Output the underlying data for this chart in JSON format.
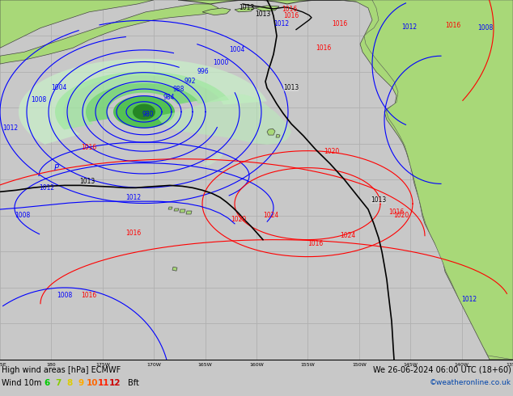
{
  "title_left": "High wind areas [hPa] ECMWF",
  "title_right": "We 26-06-2024 06:00 UTC (18+60)",
  "legend_label": "Wind 10m",
  "bf_labels": [
    "6",
    "7",
    "8",
    "9",
    "10",
    "11",
    "12",
    "Bft"
  ],
  "bf_colors": [
    "#00cc00",
    "#88cc00",
    "#ddcc00",
    "#ffaa00",
    "#ff6600",
    "#ff2200",
    "#cc0000",
    "#000000"
  ],
  "credit": "©weatheronline.co.uk",
  "bg_color": "#c8c8c8",
  "land_color": "#a8d878",
  "ocean_color": "#e0e0e0",
  "grid_color": "#b0b0b0",
  "figsize": [
    6.34,
    4.9
  ],
  "dpi": 100
}
